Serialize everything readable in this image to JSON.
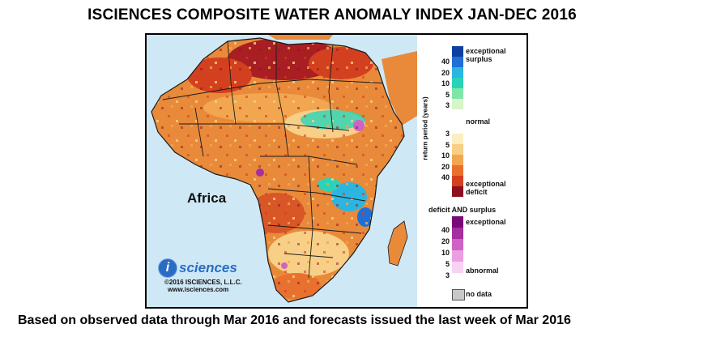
{
  "title": "ISCIENCES COMPOSITE WATER ANOMALY INDEX JAN-DEC 2016",
  "map": {
    "region_label": "Africa",
    "brand_name": "sciences",
    "brand_icon_letter": "i",
    "copyright": "©2016  ISCIENCES, L.L.C.",
    "website": "www.isciences.com",
    "colors": {
      "ocean": "#cfe8f5",
      "land_base": "#e88a3a",
      "border": "#1a1a1a"
    }
  },
  "legend": {
    "surplus_label_1": "exceptional",
    "surplus_label_2": "surplus",
    "normal_label": "normal",
    "deficit_label_1": "exceptional",
    "deficit_label_2": "deficit",
    "axis_title": "return period (years)",
    "surplus_ticks": [
      "40",
      "20",
      "10",
      "5",
      "3"
    ],
    "deficit_ticks": [
      "3",
      "5",
      "10",
      "20",
      "40"
    ],
    "both_title": "deficit AND surplus",
    "both_top_label": "exceptional",
    "both_bottom_label": "abnormal",
    "both_ticks": [
      "40",
      "20",
      "10",
      "5",
      "3"
    ],
    "no_data_label": "no data",
    "surplus_colors": [
      "#0b3fa0",
      "#1f6fd6",
      "#2bb5e0",
      "#28d4b8",
      "#7fe6a8",
      "#d8f5c8"
    ],
    "deficit_colors": [
      "#fbeec0",
      "#f7cf86",
      "#f2a650",
      "#e8712f",
      "#d3401f",
      "#8e1020"
    ],
    "both_colors": [
      "#7a0a78",
      "#a52ea0",
      "#cf62c6",
      "#eb9ee2",
      "#f8d2f2"
    ],
    "no_data_color": "#c8c8c8"
  },
  "footnote": "Based on observed data through Mar 2016 and forecasts issued the last week of Mar 2016"
}
